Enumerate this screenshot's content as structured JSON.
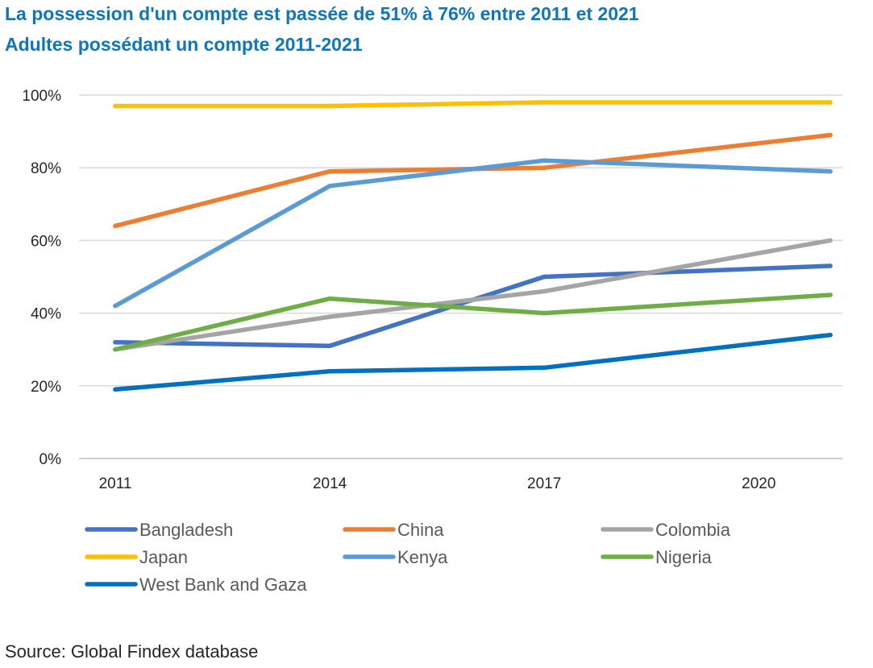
{
  "title": "La possession d'un compte est passée de 51% à 76% entre 2011 et 2021",
  "subtitle": "Adultes possédant un compte 2011-2021",
  "source": "Source: Global Findex database",
  "chart_data": {
    "type": "line",
    "x": [
      2011,
      2014,
      2017,
      2021
    ],
    "x_ticks": [
      "2011",
      "2014",
      "2017",
      "2020"
    ],
    "x_tick_values": [
      2011,
      2014,
      2017,
      2020
    ],
    "y_ticks": [
      "0%",
      "20%",
      "40%",
      "60%",
      "80%",
      "100%"
    ],
    "y_tick_values": [
      0,
      20,
      40,
      60,
      80,
      100
    ],
    "ylim": [
      0,
      100
    ],
    "grid": true,
    "legend_position": "bottom",
    "series": [
      {
        "name": "Bangladesh",
        "color": "#4472c4",
        "values": [
          32,
          31,
          50,
          53
        ]
      },
      {
        "name": "China",
        "color": "#ed7d31",
        "values": [
          64,
          79,
          80,
          89
        ]
      },
      {
        "name": "Colombia",
        "color": "#a5a5a5",
        "values": [
          30,
          39,
          46,
          60
        ]
      },
      {
        "name": "Japan",
        "color": "#ffc000",
        "values": [
          97,
          97,
          98,
          98
        ]
      },
      {
        "name": "Kenya",
        "color": "#5b9bd5",
        "values": [
          42,
          75,
          82,
          79
        ]
      },
      {
        "name": "Nigeria",
        "color": "#70ad47",
        "values": [
          30,
          44,
          40,
          45
        ]
      },
      {
        "name": "West Bank and Gaza",
        "color": "#0070c0",
        "values": [
          19,
          24,
          25,
          34
        ]
      }
    ]
  }
}
